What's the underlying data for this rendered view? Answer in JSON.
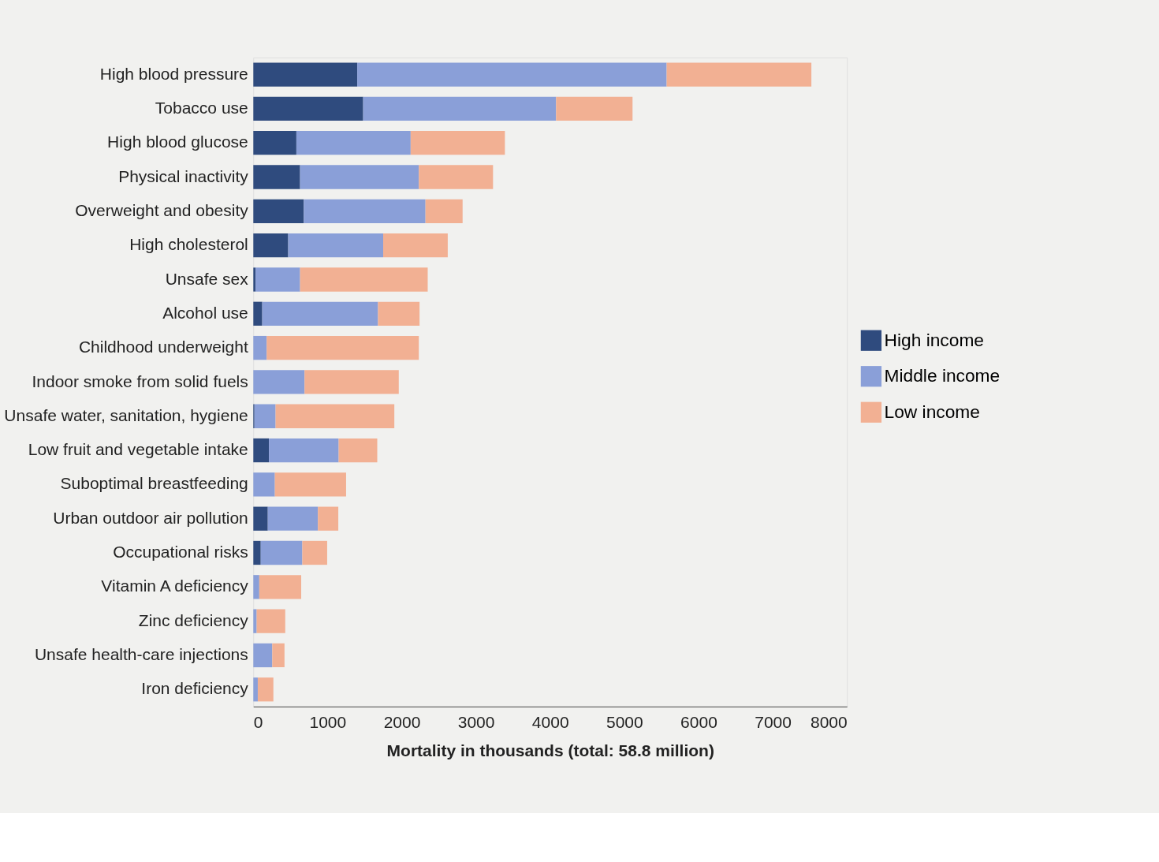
{
  "chart_data": {
    "type": "bar",
    "orientation": "horizontal",
    "stacked": true,
    "xlabel": "Mortality in thousands (total: 58.8 million)",
    "categories": [
      "High blood pressure",
      "Tobacco use",
      "High blood glucose",
      "Physical inactivity",
      "Overweight and obesity",
      "High cholesterol",
      "Unsafe sex",
      "Alcohol use",
      "Childhood underweight",
      "Indoor smoke from solid fuels",
      "Unsafe water, sanitation, hygiene",
      "Low fruit and vegetable intake",
      "Suboptimal breastfeeding",
      "Urban outdoor air pollution",
      "Occupational risks",
      "Vitamin A deficiency",
      "Zinc deficiency",
      "Unsafe health-care injections",
      "Iron deficiency"
    ],
    "series": [
      {
        "name": "High income",
        "color": "#2f4b7e",
        "values": [
          1400,
          1480,
          580,
          630,
          680,
          470,
          30,
          120,
          0,
          0,
          15,
          210,
          0,
          195,
          100,
          0,
          0,
          0,
          0
        ]
      },
      {
        "name": "Middle income",
        "color": "#8a9fd8",
        "values": [
          4170,
          2600,
          1540,
          1600,
          1640,
          1280,
          600,
          1560,
          180,
          690,
          285,
          940,
          290,
          675,
          560,
          80,
          45,
          255,
          60
        ]
      },
      {
        "name": "Low income",
        "color": "#f2b093",
        "values": [
          1950,
          1030,
          1270,
          1000,
          500,
          870,
          1720,
          560,
          2050,
          1270,
          1600,
          520,
          960,
          275,
          335,
          565,
          385,
          165,
          210
        ]
      }
    ],
    "xlim": [
      0,
      8000
    ],
    "xticks": [
      0,
      1000,
      2000,
      3000,
      4000,
      5000,
      6000,
      7000,
      8000
    ],
    "grid": false,
    "legend": "right"
  }
}
